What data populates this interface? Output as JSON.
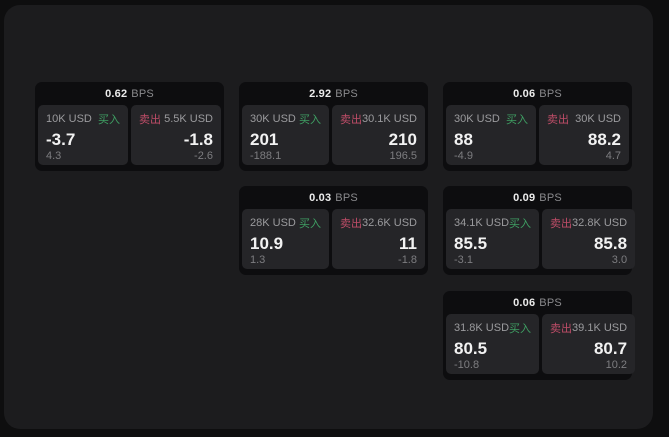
{
  "page": {
    "unit_label": "BPS"
  },
  "labels": {
    "buy": "买入",
    "sell": "卖出"
  },
  "colors": {
    "buy_green": "#3f9f63",
    "sell_red": "#bf4d68",
    "panel_bg": "#1c1c1e",
    "card_bg": "#0d0d0f",
    "pane_bg": "#252528",
    "value_text": "#f2f2f2",
    "muted_text": "#8a8a8d"
  },
  "cards": [
    {
      "bps": "0.62",
      "col": 1,
      "row": 1,
      "buy": {
        "size": "10K USD",
        "value": "-3.7",
        "change": "4.3"
      },
      "sell": {
        "size": "5.5K USD",
        "value": "-1.8",
        "change": "-2.6"
      }
    },
    {
      "bps": "2.92",
      "col": 2,
      "row": 1,
      "buy": {
        "size": "30K USD",
        "value": "201",
        "change": "-188.1"
      },
      "sell": {
        "size": "30.1K USD",
        "value": "210",
        "change": "196.5"
      }
    },
    {
      "bps": "0.06",
      "col": 3,
      "row": 1,
      "buy": {
        "size": "30K USD",
        "value": "88",
        "change": "-4.9"
      },
      "sell": {
        "size": "30K USD",
        "value": "88.2",
        "change": "4.7"
      }
    },
    {
      "bps": "0.03",
      "col": 2,
      "row": 2,
      "buy": {
        "size": "28K USD",
        "value": "10.9",
        "change": "1.3"
      },
      "sell": {
        "size": "32.6K USD",
        "value": "11",
        "change": "-1.8"
      }
    },
    {
      "bps": "0.09",
      "col": 3,
      "row": 2,
      "buy": {
        "size": "34.1K USD",
        "value": "85.5",
        "change": "-3.1"
      },
      "sell": {
        "size": "32.8K USD",
        "value": "85.8",
        "change": "3.0"
      }
    },
    {
      "bps": "0.06",
      "col": 3,
      "row": 3,
      "buy": {
        "size": "31.8K USD",
        "value": "80.5",
        "change": "-10.8"
      },
      "sell": {
        "size": "39.1K USD",
        "value": "80.7",
        "change": "10.2"
      }
    }
  ]
}
